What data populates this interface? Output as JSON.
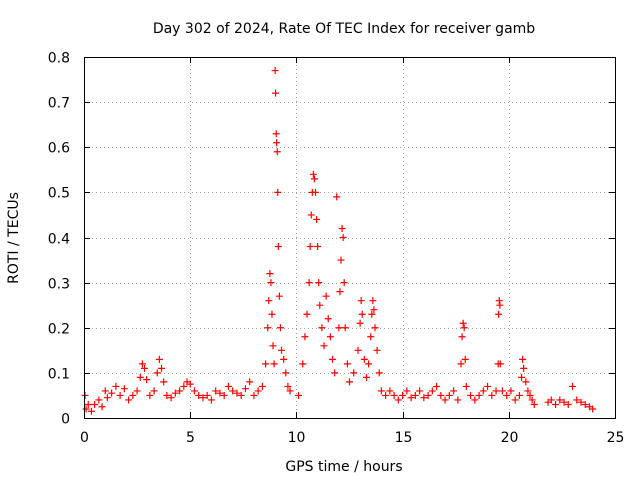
{
  "chart_data": {
    "type": "scatter",
    "title": "Day 302 of 2024, Rate Of TEC Index for receiver gamb",
    "xlabel": "GPS time / hours",
    "ylabel": "ROTI / TECUs",
    "xlim": [
      0,
      25
    ],
    "ylim": [
      0,
      0.8
    ],
    "x_ticks": [
      0,
      5,
      10,
      15,
      20,
      25
    ],
    "x_tick_labels": [
      "0",
      "5",
      "10",
      "15",
      "20",
      "25"
    ],
    "y_ticks": [
      0,
      0.1,
      0.2,
      0.3,
      0.4,
      0.5,
      0.6,
      0.7,
      0.8
    ],
    "y_tick_labels": [
      "0",
      "0.1",
      "0.2",
      "0.3",
      "0.4",
      "0.5",
      "0.6",
      "0.7",
      "0.8"
    ],
    "grid": true,
    "marker": "plus",
    "color": "#ff0000",
    "series": [
      {
        "name": "ROTI",
        "points": [
          [
            0.05,
            0.05
          ],
          [
            0.1,
            0.02
          ],
          [
            0.2,
            0.03
          ],
          [
            0.35,
            0.015
          ],
          [
            0.5,
            0.03
          ],
          [
            0.7,
            0.04
          ],
          [
            0.85,
            0.025
          ],
          [
            1.0,
            0.06
          ],
          [
            1.1,
            0.045
          ],
          [
            1.3,
            0.055
          ],
          [
            1.5,
            0.07
          ],
          [
            1.7,
            0.05
          ],
          [
            1.9,
            0.065
          ],
          [
            2.1,
            0.04
          ],
          [
            2.3,
            0.05
          ],
          [
            2.5,
            0.06
          ],
          [
            2.65,
            0.09
          ],
          [
            2.75,
            0.12
          ],
          [
            2.85,
            0.11
          ],
          [
            2.95,
            0.085
          ],
          [
            3.1,
            0.05
          ],
          [
            3.3,
            0.06
          ],
          [
            3.45,
            0.1
          ],
          [
            3.55,
            0.13
          ],
          [
            3.65,
            0.11
          ],
          [
            3.75,
            0.08
          ],
          [
            3.9,
            0.05
          ],
          [
            4.1,
            0.045
          ],
          [
            4.3,
            0.055
          ],
          [
            4.5,
            0.06
          ],
          [
            4.7,
            0.07
          ],
          [
            4.85,
            0.08
          ],
          [
            5.0,
            0.075
          ],
          [
            5.2,
            0.06
          ],
          [
            5.4,
            0.05
          ],
          [
            5.6,
            0.045
          ],
          [
            5.8,
            0.05
          ],
          [
            6.0,
            0.04
          ],
          [
            6.2,
            0.06
          ],
          [
            6.4,
            0.055
          ],
          [
            6.6,
            0.05
          ],
          [
            6.8,
            0.07
          ],
          [
            7.0,
            0.06
          ],
          [
            7.2,
            0.055
          ],
          [
            7.4,
            0.05
          ],
          [
            7.6,
            0.065
          ],
          [
            7.8,
            0.08
          ],
          [
            8.0,
            0.05
          ],
          [
            8.2,
            0.06
          ],
          [
            8.4,
            0.07
          ],
          [
            8.55,
            0.12
          ],
          [
            8.65,
            0.2
          ],
          [
            8.7,
            0.26
          ],
          [
            8.75,
            0.32
          ],
          [
            8.8,
            0.3
          ],
          [
            8.85,
            0.23
          ],
          [
            8.9,
            0.16
          ],
          [
            8.95,
            0.12
          ],
          [
            9.0,
            0.77
          ],
          [
            9.02,
            0.72
          ],
          [
            9.05,
            0.63
          ],
          [
            9.07,
            0.61
          ],
          [
            9.1,
            0.59
          ],
          [
            9.12,
            0.5
          ],
          [
            9.15,
            0.38
          ],
          [
            9.2,
            0.27
          ],
          [
            9.25,
            0.2
          ],
          [
            9.3,
            0.15
          ],
          [
            9.4,
            0.13
          ],
          [
            9.5,
            0.1
          ],
          [
            9.6,
            0.07
          ],
          [
            9.7,
            0.06
          ],
          [
            10.1,
            0.05
          ],
          [
            10.3,
            0.12
          ],
          [
            10.4,
            0.18
          ],
          [
            10.5,
            0.23
          ],
          [
            10.6,
            0.3
          ],
          [
            10.65,
            0.38
          ],
          [
            10.7,
            0.45
          ],
          [
            10.75,
            0.5
          ],
          [
            10.8,
            0.54
          ],
          [
            10.85,
            0.53
          ],
          [
            10.9,
            0.5
          ],
          [
            10.95,
            0.44
          ],
          [
            11.0,
            0.38
          ],
          [
            11.05,
            0.3
          ],
          [
            11.1,
            0.25
          ],
          [
            11.2,
            0.2
          ],
          [
            11.3,
            0.16
          ],
          [
            11.4,
            0.27
          ],
          [
            11.5,
            0.22
          ],
          [
            11.6,
            0.18
          ],
          [
            11.7,
            0.13
          ],
          [
            11.8,
            0.1
          ],
          [
            11.9,
            0.49
          ],
          [
            12.0,
            0.2
          ],
          [
            12.05,
            0.28
          ],
          [
            12.1,
            0.35
          ],
          [
            12.15,
            0.42
          ],
          [
            12.2,
            0.4
          ],
          [
            12.25,
            0.3
          ],
          [
            12.3,
            0.2
          ],
          [
            12.4,
            0.12
          ],
          [
            12.5,
            0.08
          ],
          [
            12.7,
            0.1
          ],
          [
            12.9,
            0.15
          ],
          [
            13.0,
            0.21
          ],
          [
            13.05,
            0.26
          ],
          [
            13.1,
            0.23
          ],
          [
            13.2,
            0.13
          ],
          [
            13.3,
            0.09
          ],
          [
            13.4,
            0.12
          ],
          [
            13.5,
            0.18
          ],
          [
            13.55,
            0.23
          ],
          [
            13.6,
            0.26
          ],
          [
            13.65,
            0.24
          ],
          [
            13.7,
            0.2
          ],
          [
            13.8,
            0.15
          ],
          [
            13.9,
            0.1
          ],
          [
            14.0,
            0.06
          ],
          [
            14.2,
            0.05
          ],
          [
            14.4,
            0.06
          ],
          [
            14.6,
            0.05
          ],
          [
            14.8,
            0.04
          ],
          [
            15.0,
            0.05
          ],
          [
            15.2,
            0.06
          ],
          [
            15.4,
            0.045
          ],
          [
            15.6,
            0.05
          ],
          [
            15.8,
            0.06
          ],
          [
            16.0,
            0.045
          ],
          [
            16.2,
            0.05
          ],
          [
            16.4,
            0.06
          ],
          [
            16.6,
            0.07
          ],
          [
            16.8,
            0.05
          ],
          [
            17.0,
            0.04
          ],
          [
            17.2,
            0.05
          ],
          [
            17.4,
            0.06
          ],
          [
            17.6,
            0.04
          ],
          [
            17.75,
            0.12
          ],
          [
            17.8,
            0.18
          ],
          [
            17.85,
            0.21
          ],
          [
            17.9,
            0.2
          ],
          [
            17.95,
            0.13
          ],
          [
            18.0,
            0.07
          ],
          [
            18.2,
            0.05
          ],
          [
            18.4,
            0.04
          ],
          [
            18.6,
            0.05
          ],
          [
            18.8,
            0.06
          ],
          [
            19.0,
            0.07
          ],
          [
            19.2,
            0.05
          ],
          [
            19.4,
            0.06
          ],
          [
            19.5,
            0.12
          ],
          [
            19.52,
            0.23
          ],
          [
            19.55,
            0.26
          ],
          [
            19.58,
            0.25
          ],
          [
            19.6,
            0.12
          ],
          [
            19.7,
            0.06
          ],
          [
            19.9,
            0.05
          ],
          [
            20.1,
            0.06
          ],
          [
            20.3,
            0.04
          ],
          [
            20.5,
            0.05
          ],
          [
            20.6,
            0.09
          ],
          [
            20.65,
            0.13
          ],
          [
            20.7,
            0.11
          ],
          [
            20.8,
            0.08
          ],
          [
            20.9,
            0.06
          ],
          [
            21.0,
            0.05
          ],
          [
            21.1,
            0.04
          ],
          [
            21.2,
            0.03
          ],
          [
            21.85,
            0.035
          ],
          [
            22.0,
            0.04
          ],
          [
            22.2,
            0.03
          ],
          [
            22.4,
            0.04
          ],
          [
            22.6,
            0.035
          ],
          [
            22.8,
            0.03
          ],
          [
            23.0,
            0.07
          ],
          [
            23.2,
            0.04
          ],
          [
            23.4,
            0.035
          ],
          [
            23.6,
            0.03
          ],
          [
            23.8,
            0.025
          ],
          [
            23.95,
            0.02
          ]
        ]
      }
    ]
  }
}
